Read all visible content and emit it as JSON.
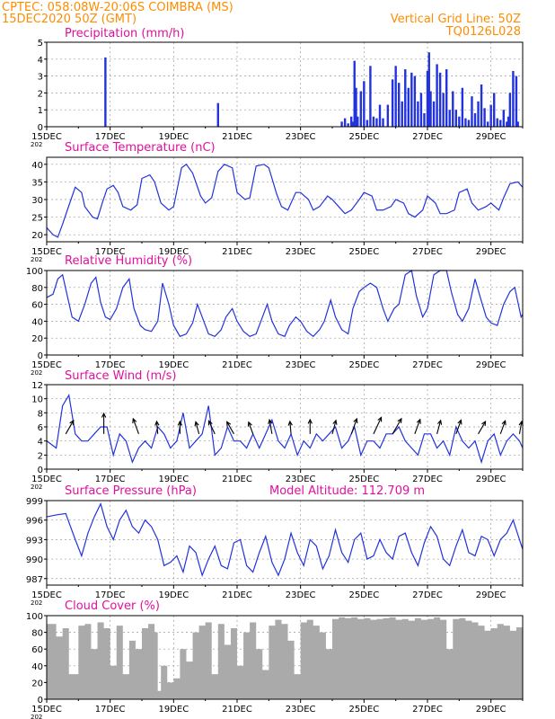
{
  "header": {
    "line1": "CPTEC:  058:08W-20:06S  COIMBRA (MS)",
    "line2": "15DEC2020 50Z (GMT)",
    "grid_note": "Vertical Grid Line: 50Z",
    "code": "TQ0126L028"
  },
  "x_tick_labels": [
    "15DEC",
    "17DEC",
    "19DEC",
    "21DEC",
    "23DEC",
    "25DEC",
    "27DEC",
    "29DEC"
  ],
  "year_label": "202",
  "extra_label": "Model Altitude: 112.709  m",
  "colors": {
    "header": "#ff8c00",
    "title": "#e0109c",
    "series": "#2233dd",
    "cloud": "#aaaaaa"
  },
  "chart_data": [
    {
      "id": "precip",
      "type": "bar",
      "title": "Precipitation (mm/h)",
      "x_unit": "days since 15DEC",
      "ylim": [
        0,
        5
      ],
      "yticks": [
        0,
        1,
        2,
        3,
        4,
        5
      ],
      "grid": true,
      "x_range": [
        0,
        15
      ],
      "x": [
        1.85,
        5.4,
        9.3,
        9.4,
        9.5,
        9.6,
        9.65,
        9.7,
        9.75,
        9.8,
        9.9,
        10.0,
        10.1,
        10.2,
        10.3,
        10.4,
        10.5,
        10.6,
        10.75,
        10.9,
        11.0,
        11.1,
        11.2,
        11.3,
        11.4,
        11.5,
        11.6,
        11.7,
        11.8,
        11.9,
        12.0,
        12.05,
        12.1,
        12.2,
        12.3,
        12.4,
        12.5,
        12.6,
        12.7,
        12.8,
        12.9,
        13.0,
        13.1,
        13.2,
        13.3,
        13.4,
        13.5,
        13.6,
        13.7,
        13.8,
        13.9,
        14.0,
        14.1,
        14.2,
        14.3,
        14.4,
        14.5,
        14.55,
        14.6,
        14.7,
        14.8,
        14.85
      ],
      "values": [
        4.1,
        1.4,
        0.3,
        0.5,
        0.2,
        0.6,
        0.3,
        3.9,
        2.3,
        0.6,
        2.1,
        2.7,
        0.4,
        3.6,
        0.6,
        0.5,
        1.3,
        0.5,
        1.3,
        2.8,
        3.6,
        2.6,
        1.5,
        3.4,
        2.3,
        3.2,
        3.0,
        1.5,
        2.0,
        0.8,
        3.3,
        4.4,
        2.1,
        1.5,
        3.7,
        3.2,
        2.0,
        3.4,
        1.0,
        2.1,
        1.0,
        0.6,
        2.3,
        0.5,
        0.4,
        1.8,
        0.8,
        1.5,
        2.5,
        1.1,
        0.3,
        1.3,
        2.0,
        0.5,
        0.4,
        1.0,
        0.3,
        0.6,
        2.0,
        3.3,
        3.0,
        0.3
      ]
    },
    {
      "id": "temp",
      "type": "line",
      "title": "Surface Temperature (nC)",
      "x_unit": "days since 15DEC",
      "ylim": [
        18,
        42
      ],
      "yticks": [
        20,
        25,
        30,
        35,
        40
      ],
      "grid": true,
      "x_range": [
        0,
        15
      ],
      "x": [
        0,
        0.2,
        0.35,
        0.5,
        0.65,
        0.9,
        1.1,
        1.2,
        1.45,
        1.6,
        1.75,
        1.9,
        2.1,
        2.25,
        2.4,
        2.65,
        2.85,
        3.0,
        3.25,
        3.4,
        3.6,
        3.85,
        4.0,
        4.25,
        4.4,
        4.6,
        4.85,
        5.0,
        5.2,
        5.4,
        5.6,
        5.85,
        6.0,
        6.25,
        6.4,
        6.6,
        6.85,
        7.0,
        7.25,
        7.4,
        7.6,
        7.85,
        8.0,
        8.25,
        8.4,
        8.6,
        8.85,
        9.0,
        9.25,
        9.4,
        9.6,
        9.85,
        10.0,
        10.25,
        10.4,
        10.6,
        10.85,
        11.0,
        11.25,
        11.4,
        11.6,
        11.85,
        12.0,
        12.25,
        12.4,
        12.6,
        12.85,
        13.0,
        13.25,
        13.4,
        13.6,
        13.85,
        14.0,
        14.25,
        14.4,
        14.6,
        14.85,
        15.0
      ],
      "values": [
        22,
        20,
        19.3,
        23,
        27,
        33.5,
        32,
        28,
        25,
        24.5,
        29,
        33,
        34,
        32,
        28,
        27,
        28.5,
        36,
        37,
        35,
        29,
        27,
        28,
        39,
        40,
        37.5,
        31,
        29,
        30.5,
        38,
        40,
        39,
        32,
        30,
        30.5,
        39.5,
        40,
        39,
        31.5,
        28,
        27,
        32,
        32,
        30,
        27,
        28,
        31,
        30,
        27.5,
        26,
        27,
        30,
        32,
        31,
        27,
        27,
        28,
        30,
        29,
        26,
        25,
        27,
        31,
        29,
        26,
        26,
        27,
        32,
        33,
        29,
        27,
        28,
        29,
        27,
        30.5,
        34.5,
        35,
        33.5
      ]
    },
    {
      "id": "rh",
      "type": "line",
      "title": "Relative Humidity (%)",
      "x_unit": "days since 15DEC",
      "ylim": [
        0,
        100
      ],
      "yticks": [
        0,
        20,
        40,
        60,
        80,
        100
      ],
      "grid": true,
      "x_range": [
        0,
        15
      ],
      "x": [
        0,
        0.2,
        0.35,
        0.5,
        0.65,
        0.8,
        1.0,
        1.2,
        1.4,
        1.55,
        1.7,
        1.85,
        2.0,
        2.2,
        2.4,
        2.6,
        2.75,
        2.95,
        3.1,
        3.3,
        3.5,
        3.65,
        3.85,
        4.0,
        4.2,
        4.4,
        4.6,
        4.75,
        4.95,
        5.1,
        5.3,
        5.5,
        5.65,
        5.85,
        6.0,
        6.2,
        6.4,
        6.6,
        6.75,
        6.95,
        7.1,
        7.3,
        7.5,
        7.65,
        7.85,
        8.0,
        8.2,
        8.4,
        8.6,
        8.75,
        8.95,
        9.1,
        9.3,
        9.5,
        9.65,
        9.85,
        10.0,
        10.2,
        10.4,
        10.6,
        10.75,
        10.95,
        11.1,
        11.3,
        11.5,
        11.65,
        11.85,
        12.0,
        12.2,
        12.4,
        12.6,
        12.75,
        12.95,
        13.1,
        13.3,
        13.5,
        13.65,
        13.85,
        14.0,
        14.2,
        14.4,
        14.6,
        14.75,
        14.95,
        15.0
      ],
      "values": [
        68,
        72,
        90,
        95,
        70,
        45,
        40,
        60,
        85,
        92,
        62,
        45,
        42,
        55,
        80,
        90,
        55,
        35,
        30,
        28,
        40,
        85,
        60,
        35,
        22,
        25,
        38,
        60,
        40,
        25,
        22,
        30,
        45,
        55,
        40,
        28,
        22,
        25,
        40,
        60,
        40,
        25,
        22,
        35,
        45,
        40,
        28,
        22,
        30,
        40,
        65,
        45,
        30,
        25,
        55,
        75,
        80,
        85,
        80,
        55,
        40,
        55,
        60,
        95,
        100,
        70,
        45,
        55,
        95,
        100,
        100,
        75,
        48,
        40,
        55,
        90,
        70,
        45,
        38,
        35,
        60,
        75,
        80,
        45,
        48
      ]
    },
    {
      "id": "wind",
      "type": "line",
      "title": "Surface Wind (m/s)",
      "x_unit": "days since 15DEC",
      "ylim": [
        0,
        12
      ],
      "yticks": [
        0,
        2,
        4,
        6,
        8,
        10,
        12
      ],
      "grid": true,
      "x_range": [
        0,
        15
      ],
      "x": [
        0,
        0.3,
        0.5,
        0.7,
        0.9,
        1.1,
        1.3,
        1.5,
        1.7,
        1.9,
        2.1,
        2.3,
        2.5,
        2.7,
        2.9,
        3.1,
        3.3,
        3.5,
        3.7,
        3.9,
        4.1,
        4.3,
        4.5,
        4.7,
        4.9,
        5.1,
        5.3,
        5.5,
        5.7,
        5.9,
        6.1,
        6.3,
        6.5,
        6.7,
        6.9,
        7.1,
        7.3,
        7.5,
        7.7,
        7.9,
        8.1,
        8.3,
        8.5,
        8.7,
        8.9,
        9.1,
        9.3,
        9.5,
        9.7,
        9.9,
        10.1,
        10.3,
        10.5,
        10.7,
        10.9,
        11.1,
        11.3,
        11.5,
        11.7,
        11.9,
        12.1,
        12.3,
        12.5,
        12.7,
        12.9,
        13.1,
        13.3,
        13.5,
        13.7,
        13.9,
        14.1,
        14.3,
        14.5,
        14.7,
        14.9,
        15.0
      ],
      "values": [
        4,
        3,
        9,
        10.5,
        5,
        4,
        4,
        5,
        6,
        6,
        2,
        5,
        4,
        1,
        3,
        4,
        3,
        6,
        5,
        3,
        4,
        8,
        3,
        4,
        5,
        9,
        2,
        3,
        6,
        4,
        4,
        3,
        5,
        3,
        5,
        7,
        4,
        3,
        5,
        2,
        4,
        3,
        5,
        4,
        5,
        6,
        3,
        4,
        6,
        2,
        4,
        4,
        3,
        5,
        5,
        6,
        4,
        3,
        2,
        5,
        5,
        3,
        4,
        2,
        6,
        4,
        3,
        4,
        1,
        4,
        5,
        2,
        4,
        5,
        4,
        3
      ],
      "arrows": [
        [
          0.6,
          2.8,
          210
        ],
        [
          1.8,
          4.2,
          180
        ],
        [
          2.9,
          3.0,
          160
        ],
        [
          3.5,
          2.0,
          175
        ],
        [
          4.2,
          2.0,
          180
        ],
        [
          4.8,
          2.0,
          165
        ],
        [
          5.3,
          2.5,
          155
        ],
        [
          5.9,
          2.4,
          150
        ],
        [
          6.5,
          2.0,
          160
        ],
        [
          7.1,
          2.5,
          170
        ],
        [
          7.7,
          2.0,
          175
        ],
        [
          8.3,
          2.5,
          180
        ],
        [
          9.0,
          2.4,
          195
        ],
        [
          9.6,
          3.0,
          200
        ],
        [
          10.3,
          3.6,
          205
        ],
        [
          10.9,
          3.4,
          210
        ],
        [
          11.6,
          2.8,
          200
        ],
        [
          12.3,
          2.4,
          195
        ],
        [
          12.9,
          2.6,
          200
        ],
        [
          13.6,
          2.5,
          210
        ],
        [
          14.3,
          2.4,
          200
        ],
        [
          14.9,
          2.0,
          190
        ]
      ]
    },
    {
      "id": "pres",
      "type": "line",
      "title": "Surface Pressure (hPa)",
      "x_unit": "days since 15DEC",
      "ylim": [
        986,
        999
      ],
      "yticks": [
        987,
        990,
        993,
        996,
        999
      ],
      "grid": true,
      "x_range": [
        0,
        15
      ],
      "x": [
        0,
        0.3,
        0.6,
        0.9,
        1.1,
        1.3,
        1.5,
        1.7,
        1.9,
        2.1,
        2.3,
        2.5,
        2.7,
        2.9,
        3.1,
        3.3,
        3.5,
        3.7,
        3.9,
        4.1,
        4.3,
        4.5,
        4.7,
        4.9,
        5.1,
        5.3,
        5.5,
        5.7,
        5.9,
        6.1,
        6.3,
        6.5,
        6.7,
        6.9,
        7.1,
        7.3,
        7.5,
        7.7,
        7.9,
        8.1,
        8.3,
        8.5,
        8.7,
        8.9,
        9.1,
        9.3,
        9.5,
        9.7,
        9.9,
        10.1,
        10.3,
        10.5,
        10.7,
        10.9,
        11.1,
        11.3,
        11.5,
        11.7,
        11.9,
        12.1,
        12.3,
        12.5,
        12.7,
        12.9,
        13.1,
        13.3,
        13.5,
        13.7,
        13.9,
        14.1,
        14.3,
        14.5,
        14.7,
        14.9,
        15.0
      ],
      "values": [
        996.5,
        996.8,
        997,
        993,
        990.5,
        994,
        996.5,
        998.5,
        995,
        993,
        996,
        997.5,
        995,
        994,
        996,
        995,
        993,
        989,
        989.5,
        990.5,
        988,
        992,
        991,
        987.5,
        990,
        992,
        989,
        988.5,
        992.5,
        993,
        989,
        988,
        991,
        993.5,
        989.5,
        987.5,
        990,
        994,
        991,
        989,
        993,
        992,
        988.5,
        990.5,
        994.5,
        991,
        989.5,
        993,
        994,
        990,
        990.5,
        993,
        991,
        990,
        993.5,
        994,
        991,
        989,
        992.5,
        995,
        993.5,
        990,
        989,
        992,
        994.5,
        991,
        990.5,
        993.5,
        993,
        990.5,
        993,
        994,
        996,
        993,
        991.5
      ]
    },
    {
      "id": "cloud",
      "type": "area",
      "title": "Cloud Cover (%)",
      "x_unit": "days since 15DEC",
      "ylim": [
        0,
        100
      ],
      "yticks": [
        0,
        20,
        40,
        60,
        80,
        100
      ],
      "grid": true,
      "x_range": [
        0,
        15
      ],
      "x": [
        0,
        0.3,
        0.5,
        0.7,
        1.0,
        1.2,
        1.4,
        1.6,
        1.8,
        2.0,
        2.2,
        2.4,
        2.6,
        2.8,
        3.0,
        3.2,
        3.4,
        3.5,
        3.6,
        3.8,
        4.0,
        4.2,
        4.4,
        4.6,
        4.8,
        5.0,
        5.2,
        5.4,
        5.6,
        5.8,
        6.0,
        6.2,
        6.4,
        6.6,
        6.8,
        7.0,
        7.2,
        7.4,
        7.6,
        7.8,
        8.0,
        8.2,
        8.4,
        8.6,
        8.8,
        9.0,
        9.2,
        9.4,
        9.6,
        9.8,
        10.0,
        10.2,
        10.4,
        10.6,
        10.8,
        11.0,
        11.2,
        11.4,
        11.6,
        11.8,
        12.0,
        12.2,
        12.4,
        12.6,
        12.8,
        13.0,
        13.2,
        13.4,
        13.6,
        13.8,
        14.0,
        14.2,
        14.4,
        14.6,
        14.8,
        15.0
      ],
      "values": [
        90,
        75,
        85,
        30,
        88,
        90,
        60,
        92,
        85,
        40,
        88,
        30,
        70,
        60,
        85,
        90,
        80,
        10,
        40,
        20,
        25,
        60,
        45,
        80,
        88,
        92,
        30,
        90,
        65,
        85,
        40,
        80,
        92,
        60,
        35,
        88,
        95,
        90,
        70,
        30,
        92,
        95,
        88,
        80,
        60,
        96,
        98,
        97,
        98,
        96,
        97,
        95,
        96,
        97,
        98,
        95,
        96,
        94,
        97,
        95,
        96,
        98,
        95,
        60,
        96,
        97,
        94,
        92,
        88,
        82,
        85,
        90,
        88,
        82,
        86,
        86
      ]
    }
  ]
}
